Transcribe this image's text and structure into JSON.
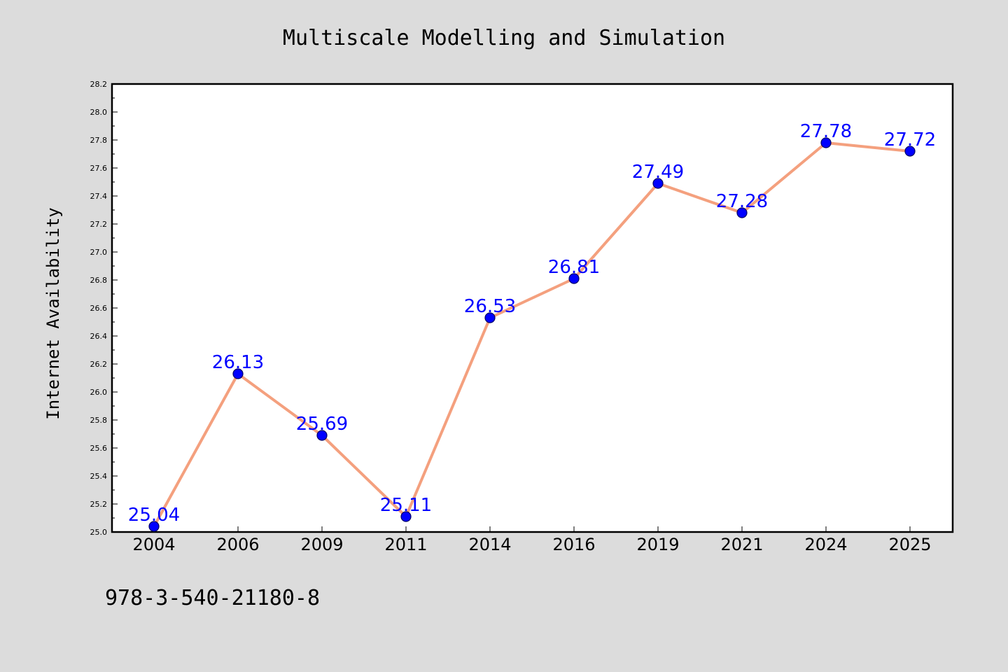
{
  "chart_data": {
    "type": "line",
    "title": "Multiscale Modelling and Simulation",
    "ylabel": "Internet Availability",
    "xlabel": "",
    "categories": [
      "2004",
      "2006",
      "2009",
      "2011",
      "2014",
      "2016",
      "2019",
      "2021",
      "2024",
      "2025"
    ],
    "values": [
      25.04,
      26.13,
      25.69,
      25.11,
      26.53,
      26.81,
      27.49,
      27.28,
      27.78,
      27.72
    ],
    "data_labels": [
      "25.04",
      "26.13",
      "25.69",
      "25.11",
      "26.53",
      "26.81",
      "27.49",
      "27.28",
      "27.78",
      "27.72"
    ],
    "ylim": [
      25.0,
      28.2
    ],
    "yticks": [
      "25.0",
      "25.2",
      "25.4",
      "25.6",
      "25.8",
      "26.0",
      "26.2",
      "26.4",
      "26.6",
      "26.8",
      "27.0",
      "27.2",
      "27.4",
      "27.6",
      "27.8",
      "28.0",
      "28.2"
    ],
    "grid": false,
    "legend": "none",
    "colors": {
      "line": "#f4a07e",
      "marker": "#0000ff",
      "marker_edge": "#000066",
      "data_label": "#0000ff",
      "plot_background": "#ffffff",
      "figure_background": "#dcdcdc"
    }
  },
  "footnote": "978-3-540-21180-8"
}
